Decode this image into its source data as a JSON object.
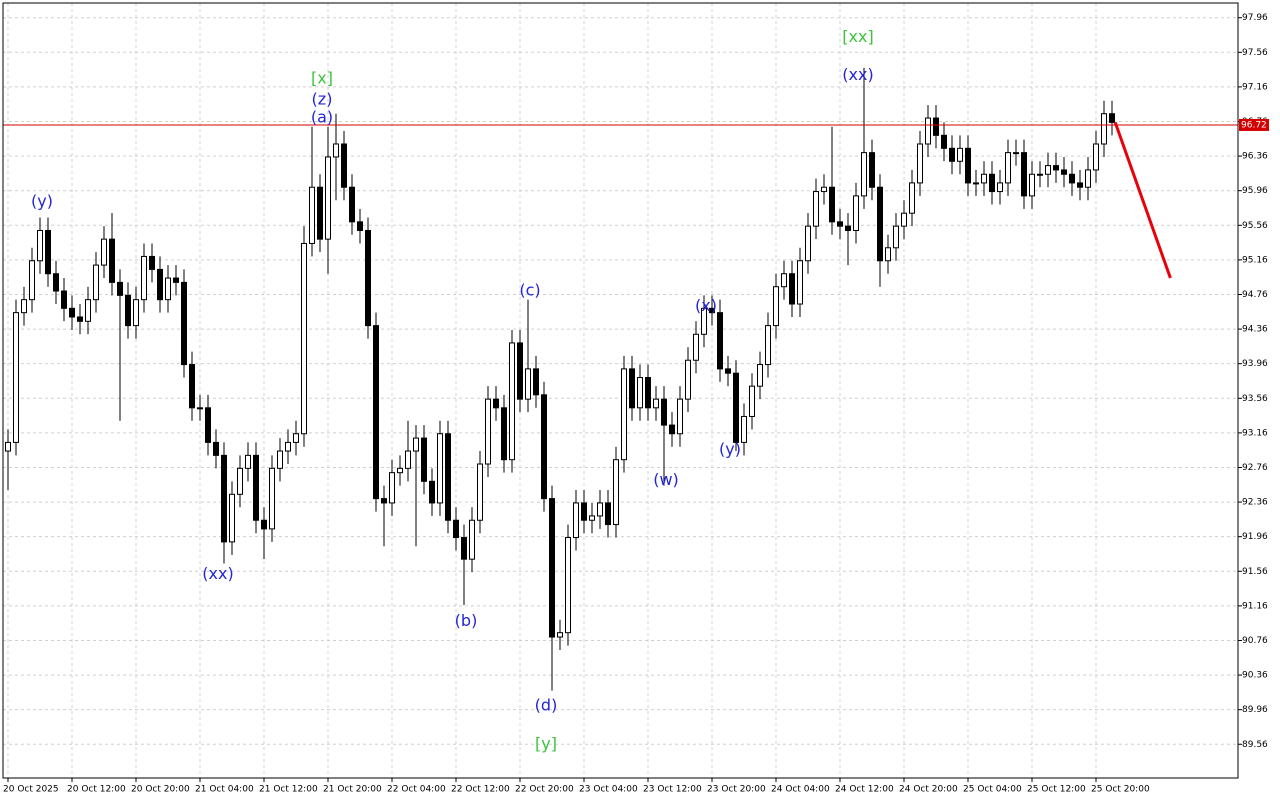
{
  "chart_data": {
    "type": "candlestick",
    "categories": [
      "20 Oct 2025",
      null,
      null,
      null,
      null,
      null,
      null,
      null,
      "20 Oct 12:00",
      null,
      null,
      null,
      null,
      null,
      null,
      null,
      "20 Oct 20:00",
      null,
      null,
      null,
      null,
      null,
      null,
      null,
      "21 Oct 04:00",
      null,
      null,
      null,
      null,
      null,
      null,
      null,
      "21 Oct 12:00",
      null,
      null,
      null,
      null,
      null,
      null,
      null,
      "21 Oct 20:00",
      null,
      null,
      null,
      null,
      null,
      null,
      null,
      "22 Oct 04:00",
      null,
      null,
      null,
      null,
      null,
      null,
      null,
      "22 Oct 12:00",
      null,
      null,
      null,
      null,
      null,
      null,
      null,
      "22 Oct 20:00",
      null,
      null,
      null,
      null,
      null,
      null,
      null,
      "23 Oct 04:00",
      null,
      null,
      null,
      null,
      null,
      null,
      null,
      "23 Oct 12:00",
      null,
      null,
      null,
      null,
      null,
      null,
      null,
      "23 Oct 20:00",
      null,
      null,
      null,
      null,
      null,
      null,
      null,
      "24 Oct 04:00",
      null,
      null,
      null,
      null,
      null,
      null,
      null,
      "24 Oct 12:00",
      null,
      null,
      null,
      null,
      null,
      null,
      null,
      "24 Oct 20:00",
      null,
      null,
      null,
      null,
      null,
      null,
      null,
      "25 Oct 04:00",
      null,
      null,
      null,
      null,
      null,
      null,
      null,
      "25 Oct 12:00",
      null,
      null,
      null,
      null,
      null,
      null,
      null,
      "25 Oct 20:00",
      null,
      null
    ],
    "open": [
      92.95,
      93.05,
      94.55,
      94.7,
      95.15,
      95.5,
      95.0,
      94.8,
      94.6,
      94.5,
      94.45,
      94.7,
      95.1,
      95.4,
      94.9,
      94.75,
      94.4,
      94.7,
      95.2,
      95.05,
      94.7,
      94.95,
      94.9,
      93.95,
      93.45,
      93.45,
      93.05,
      92.9,
      91.9,
      92.45,
      92.75,
      92.9,
      92.15,
      92.05,
      92.75,
      92.95,
      93.05,
      93.15,
      95.35,
      96.0,
      95.4,
      96.35,
      96.5,
      96.0,
      95.6,
      95.5,
      94.4,
      92.4,
      92.35,
      92.7,
      92.75,
      92.95,
      93.1,
      92.6,
      92.35,
      93.15,
      92.15,
      91.95,
      91.7,
      92.15,
      92.8,
      93.55,
      93.45,
      92.85,
      94.2,
      93.55,
      93.9,
      93.6,
      92.4,
      90.8,
      90.85,
      91.95,
      92.35,
      92.15,
      92.2,
      92.35,
      92.1,
      92.85,
      93.9,
      93.45,
      93.8,
      93.45,
      93.55,
      93.25,
      93.15,
      93.55,
      94.0,
      94.3,
      94.6,
      94.55,
      93.9,
      93.85,
      93.05,
      93.35,
      93.7,
      93.95,
      94.4,
      94.85,
      95.0,
      94.65,
      95.15,
      95.55,
      95.95,
      96.0,
      95.6,
      95.55,
      95.5,
      95.9,
      96.4,
      96.0,
      95.15,
      95.3,
      95.55,
      95.7,
      96.05,
      96.5,
      96.8,
      96.6,
      96.45,
      96.3,
      96.45,
      96.05,
      96.05,
      96.15,
      95.95,
      96.05,
      96.4,
      96.4,
      95.9,
      96.15,
      96.15,
      96.25,
      96.2,
      96.15,
      96.05,
      96.0,
      96.2,
      96.5,
      96.85
    ],
    "high": [
      93.2,
      94.7,
      94.85,
      95.3,
      95.65,
      95.65,
      95.15,
      94.95,
      94.75,
      94.65,
      94.85,
      95.25,
      95.55,
      95.7,
      95.05,
      94.9,
      94.85,
      95.35,
      95.35,
      95.2,
      95.1,
      95.1,
      95.05,
      94.1,
      93.6,
      93.6,
      93.2,
      93.05,
      92.6,
      92.9,
      93.05,
      93.05,
      92.3,
      92.9,
      93.1,
      93.2,
      93.3,
      95.55,
      96.7,
      96.15,
      96.7,
      96.85,
      96.65,
      96.15,
      95.75,
      95.65,
      94.55,
      92.55,
      92.85,
      92.9,
      93.3,
      93.25,
      93.25,
      92.75,
      93.3,
      93.3,
      92.3,
      92.1,
      92.3,
      92.95,
      93.7,
      93.7,
      93.6,
      94.35,
      94.35,
      94.7,
      94.05,
      93.75,
      92.55,
      91.0,
      92.1,
      92.5,
      92.5,
      92.35,
      92.5,
      92.5,
      93.0,
      94.05,
      94.05,
      93.95,
      93.95,
      93.7,
      93.7,
      93.4,
      93.7,
      94.15,
      94.45,
      94.75,
      94.75,
      94.7,
      94.05,
      94.0,
      93.5,
      93.85,
      94.1,
      94.55,
      95.0,
      95.15,
      95.15,
      95.3,
      95.7,
      96.1,
      96.15,
      96.7,
      95.75,
      95.7,
      96.05,
      97.38,
      96.55,
      96.15,
      95.45,
      95.7,
      95.85,
      96.2,
      96.65,
      96.95,
      96.95,
      96.75,
      96.6,
      96.6,
      96.6,
      96.2,
      96.3,
      96.3,
      96.2,
      96.55,
      96.55,
      96.55,
      96.3,
      96.3,
      96.4,
      96.4,
      96.35,
      96.3,
      96.2,
      96.35,
      96.65,
      97.0,
      97.0
    ],
    "low": [
      92.5,
      92.9,
      94.4,
      94.55,
      95.0,
      94.85,
      94.65,
      94.45,
      94.35,
      94.3,
      94.3,
      94.55,
      94.95,
      94.75,
      93.3,
      94.25,
      94.25,
      94.55,
      94.9,
      94.55,
      94.55,
      94.75,
      93.8,
      93.3,
      93.3,
      92.9,
      92.75,
      91.65,
      91.75,
      92.3,
      92.6,
      92.0,
      91.7,
      91.9,
      92.6,
      92.8,
      92.9,
      93.0,
      95.2,
      95.25,
      95.0,
      95.85,
      95.85,
      95.45,
      95.35,
      94.25,
      92.25,
      91.85,
      92.2,
      92.55,
      92.6,
      91.85,
      92.45,
      92.2,
      92.2,
      92.0,
      91.8,
      91.17,
      91.55,
      92.0,
      92.65,
      93.3,
      92.7,
      92.7,
      93.4,
      93.4,
      93.45,
      92.25,
      90.18,
      90.65,
      90.7,
      91.8,
      92.0,
      92.0,
      92.05,
      91.95,
      91.95,
      92.7,
      93.3,
      93.3,
      93.3,
      93.3,
      92.55,
      93.0,
      93.0,
      93.4,
      93.85,
      94.15,
      94.4,
      93.75,
      93.7,
      92.95,
      92.9,
      93.2,
      93.55,
      93.8,
      94.25,
      94.7,
      94.5,
      94.5,
      95.0,
      95.4,
      95.8,
      95.45,
      95.4,
      95.1,
      95.35,
      95.75,
      95.85,
      94.85,
      95.0,
      95.15,
      95.4,
      95.55,
      95.9,
      96.35,
      96.45,
      96.3,
      96.15,
      96.15,
      95.9,
      95.9,
      95.9,
      95.8,
      95.8,
      95.9,
      96.25,
      95.75,
      95.75,
      96.0,
      96.0,
      96.05,
      96.0,
      95.9,
      95.85,
      95.85,
      96.05,
      96.35,
      96.6
    ],
    "close": [
      93.05,
      94.55,
      94.7,
      95.15,
      95.5,
      95.0,
      94.8,
      94.6,
      94.5,
      94.45,
      94.7,
      95.1,
      95.4,
      94.9,
      94.75,
      94.4,
      94.7,
      95.2,
      95.05,
      94.7,
      94.95,
      94.9,
      93.95,
      93.45,
      93.45,
      93.05,
      92.9,
      91.9,
      92.45,
      92.75,
      92.9,
      92.15,
      92.05,
      92.75,
      92.95,
      93.05,
      93.15,
      95.35,
      96.0,
      95.4,
      96.35,
      96.5,
      96.0,
      95.6,
      95.5,
      94.4,
      92.4,
      92.35,
      92.7,
      92.75,
      92.95,
      93.1,
      92.6,
      92.35,
      93.15,
      92.15,
      91.95,
      91.7,
      92.15,
      92.8,
      93.55,
      93.45,
      92.85,
      94.2,
      93.55,
      93.9,
      93.6,
      92.4,
      90.8,
      90.85,
      91.95,
      92.35,
      92.15,
      92.2,
      92.35,
      92.1,
      92.85,
      93.9,
      93.45,
      93.8,
      93.45,
      93.55,
      93.25,
      93.15,
      93.55,
      94.0,
      94.3,
      94.6,
      94.55,
      93.9,
      93.85,
      93.05,
      93.35,
      93.7,
      93.95,
      94.4,
      94.85,
      95.0,
      94.65,
      95.15,
      95.55,
      95.95,
      96.0,
      95.6,
      95.55,
      95.5,
      95.9,
      96.4,
      96.0,
      95.15,
      95.3,
      95.55,
      95.7,
      96.05,
      96.5,
      96.8,
      96.6,
      96.45,
      96.3,
      96.45,
      96.05,
      96.05,
      96.15,
      95.95,
      96.05,
      96.4,
      96.4,
      95.9,
      96.15,
      96.15,
      96.25,
      96.2,
      96.15,
      96.05,
      96.0,
      96.2,
      96.5,
      96.85,
      96.75
    ],
    "ylim": [
      89.17,
      98.13
    ],
    "yticks": [
      97.96,
      97.56,
      97.16,
      96.76,
      96.36,
      95.96,
      95.56,
      95.16,
      94.76,
      94.36,
      93.96,
      93.56,
      93.16,
      92.76,
      92.36,
      91.96,
      91.56,
      91.16,
      90.76,
      90.36,
      89.96,
      89.56
    ],
    "grid": true,
    "up_color": "#ffffff",
    "down_color": "#000000",
    "price_line": {
      "value": 96.72,
      "color": "#d40000"
    },
    "forecast": {
      "x": [
        138.4,
        145.3
      ],
      "y": [
        96.75,
        94.95
      ],
      "color": "#e8000b"
    },
    "annotations": [
      {
        "text": "(y)",
        "color": "#2424d8",
        "index": 4,
        "price": 95.83
      },
      {
        "text": "(xx)",
        "color": "#2424d8",
        "index": 26,
        "price": 91.52
      },
      {
        "text": "[x]",
        "color": "#3cc43c",
        "index": 39,
        "price": 97.25
      },
      {
        "text": "(z)",
        "color": "#2424d8",
        "index": 39,
        "price": 97.01
      },
      {
        "text": "(a)",
        "color": "#2424d8",
        "index": 39,
        "price": 96.8
      },
      {
        "text": "(b)",
        "color": "#2424d8",
        "index": 57,
        "price": 90.98
      },
      {
        "text": "(c)",
        "color": "#2424d8",
        "index": 65,
        "price": 94.8
      },
      {
        "text": "(d)",
        "color": "#2424d8",
        "index": 67,
        "price": 90.0
      },
      {
        "text": "[y]",
        "color": "#3cc43c",
        "index": 67,
        "price": 89.56
      },
      {
        "text": "(w)",
        "color": "#2424d8",
        "index": 82,
        "price": 92.61
      },
      {
        "text": "(x)",
        "color": "#2424d8",
        "index": 87,
        "price": 94.62
      },
      {
        "text": "(y)",
        "color": "#2424d8",
        "index": 90,
        "price": 92.96
      },
      {
        "text": "(xx)",
        "color": "#2424d8",
        "index": 106,
        "price": 97.29
      },
      {
        "text": "[xx]",
        "color": "#3cc43c",
        "index": 106,
        "price": 97.73
      }
    ]
  }
}
